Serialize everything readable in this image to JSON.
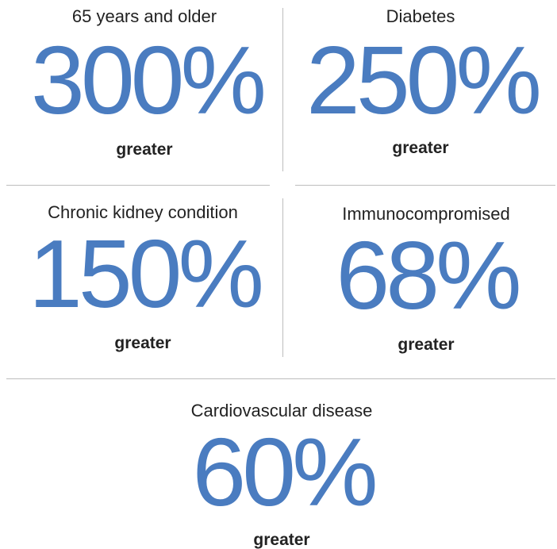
{
  "items": [
    {
      "label": "65 years and older",
      "value": "300%",
      "note": "greater"
    },
    {
      "label": "Diabetes",
      "value": "250%",
      "note": "greater"
    },
    {
      "label": "Chronic kidney condition",
      "value": "150%",
      "note": "greater"
    },
    {
      "label": "Immunocompromised",
      "value": "68%",
      "note": "greater"
    },
    {
      "label": "Cardiovascular disease",
      "value": "60%",
      "note": "greater"
    }
  ]
}
